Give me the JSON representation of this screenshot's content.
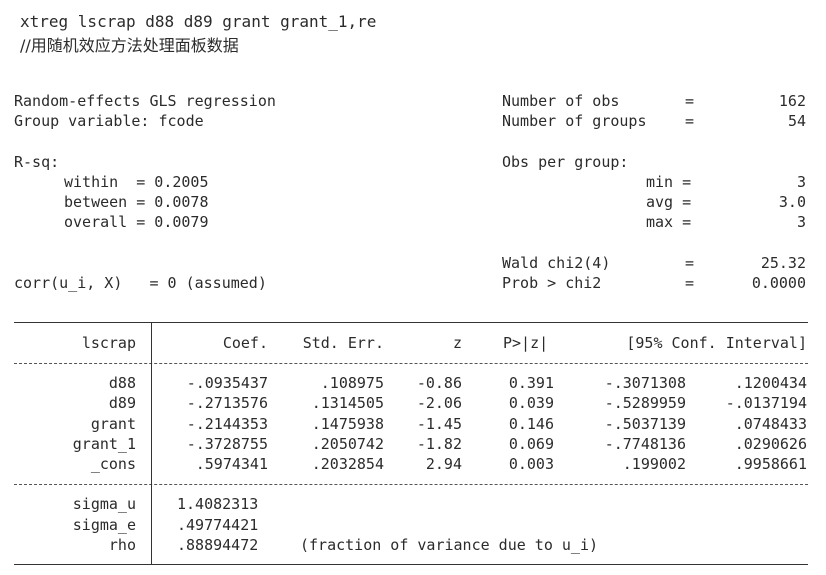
{
  "command": "xtreg lscrap d88 d89 grant grant_1,re",
  "comment": "//用随机效应方法处理面板数据",
  "header": {
    "title": "Random-effects GLS regression",
    "group_var": "Group variable: fcode",
    "rsq_label": "R-sq:",
    "within": "within  = 0.2005",
    "between": "between = 0.0078",
    "overall": "overall = 0.0079",
    "corr": "corr(u_i, X)   = 0 (assumed)",
    "nobs_label": "Number of obs",
    "nobs_eq": "=",
    "nobs_val": "162",
    "ngroups_label": "Number of groups",
    "ngroups_eq": "=",
    "ngroups_val": "54",
    "obs_per_group": "Obs per group:",
    "min_label": "min =",
    "min_val": "3",
    "avg_label": "avg =",
    "avg_val": "3.0",
    "max_label": "max =",
    "max_val": "3",
    "wald_label": "Wald chi2(4)",
    "wald_eq": "=",
    "wald_val": "25.32",
    "prob_label": "Prob > chi2",
    "prob_eq": "=",
    "prob_val": "0.0000"
  },
  "table": {
    "depvar": "lscrap",
    "columns": [
      "Coef.",
      "Std. Err.",
      "z",
      "P>|z|",
      "[95% Conf. Interval]"
    ],
    "rows": [
      {
        "name": "d88",
        "coef": "-.0935437",
        "se": ".108975",
        "z": "-0.86",
        "p": "0.391",
        "lo": "-.3071308",
        "hi": ".1200434"
      },
      {
        "name": "d89",
        "coef": "-.2713576",
        "se": ".1314505",
        "z": "-2.06",
        "p": "0.039",
        "lo": "-.5289959",
        "hi": "-.0137194"
      },
      {
        "name": "grant",
        "coef": "-.2144353",
        "se": ".1475938",
        "z": "-1.45",
        "p": "0.146",
        "lo": "-.5037139",
        "hi": ".0748433"
      },
      {
        "name": "grant_1",
        "coef": "-.3728755",
        "se": ".2050742",
        "z": "-1.82",
        "p": "0.069",
        "lo": "-.7748136",
        "hi": ".0290626"
      },
      {
        "name": "_cons",
        "coef": ".5974341",
        "se": ".2032854",
        "z": "2.94",
        "p": "0.003",
        "lo": ".199002",
        "hi": ".9958661"
      }
    ],
    "sigma_u_label": "sigma_u",
    "sigma_u": "1.4082313",
    "sigma_e_label": "sigma_e",
    "sigma_e": ".49774421",
    "rho_label": "rho",
    "rho": ".88894472",
    "rho_note": "(fraction of variance due to u_i)"
  }
}
